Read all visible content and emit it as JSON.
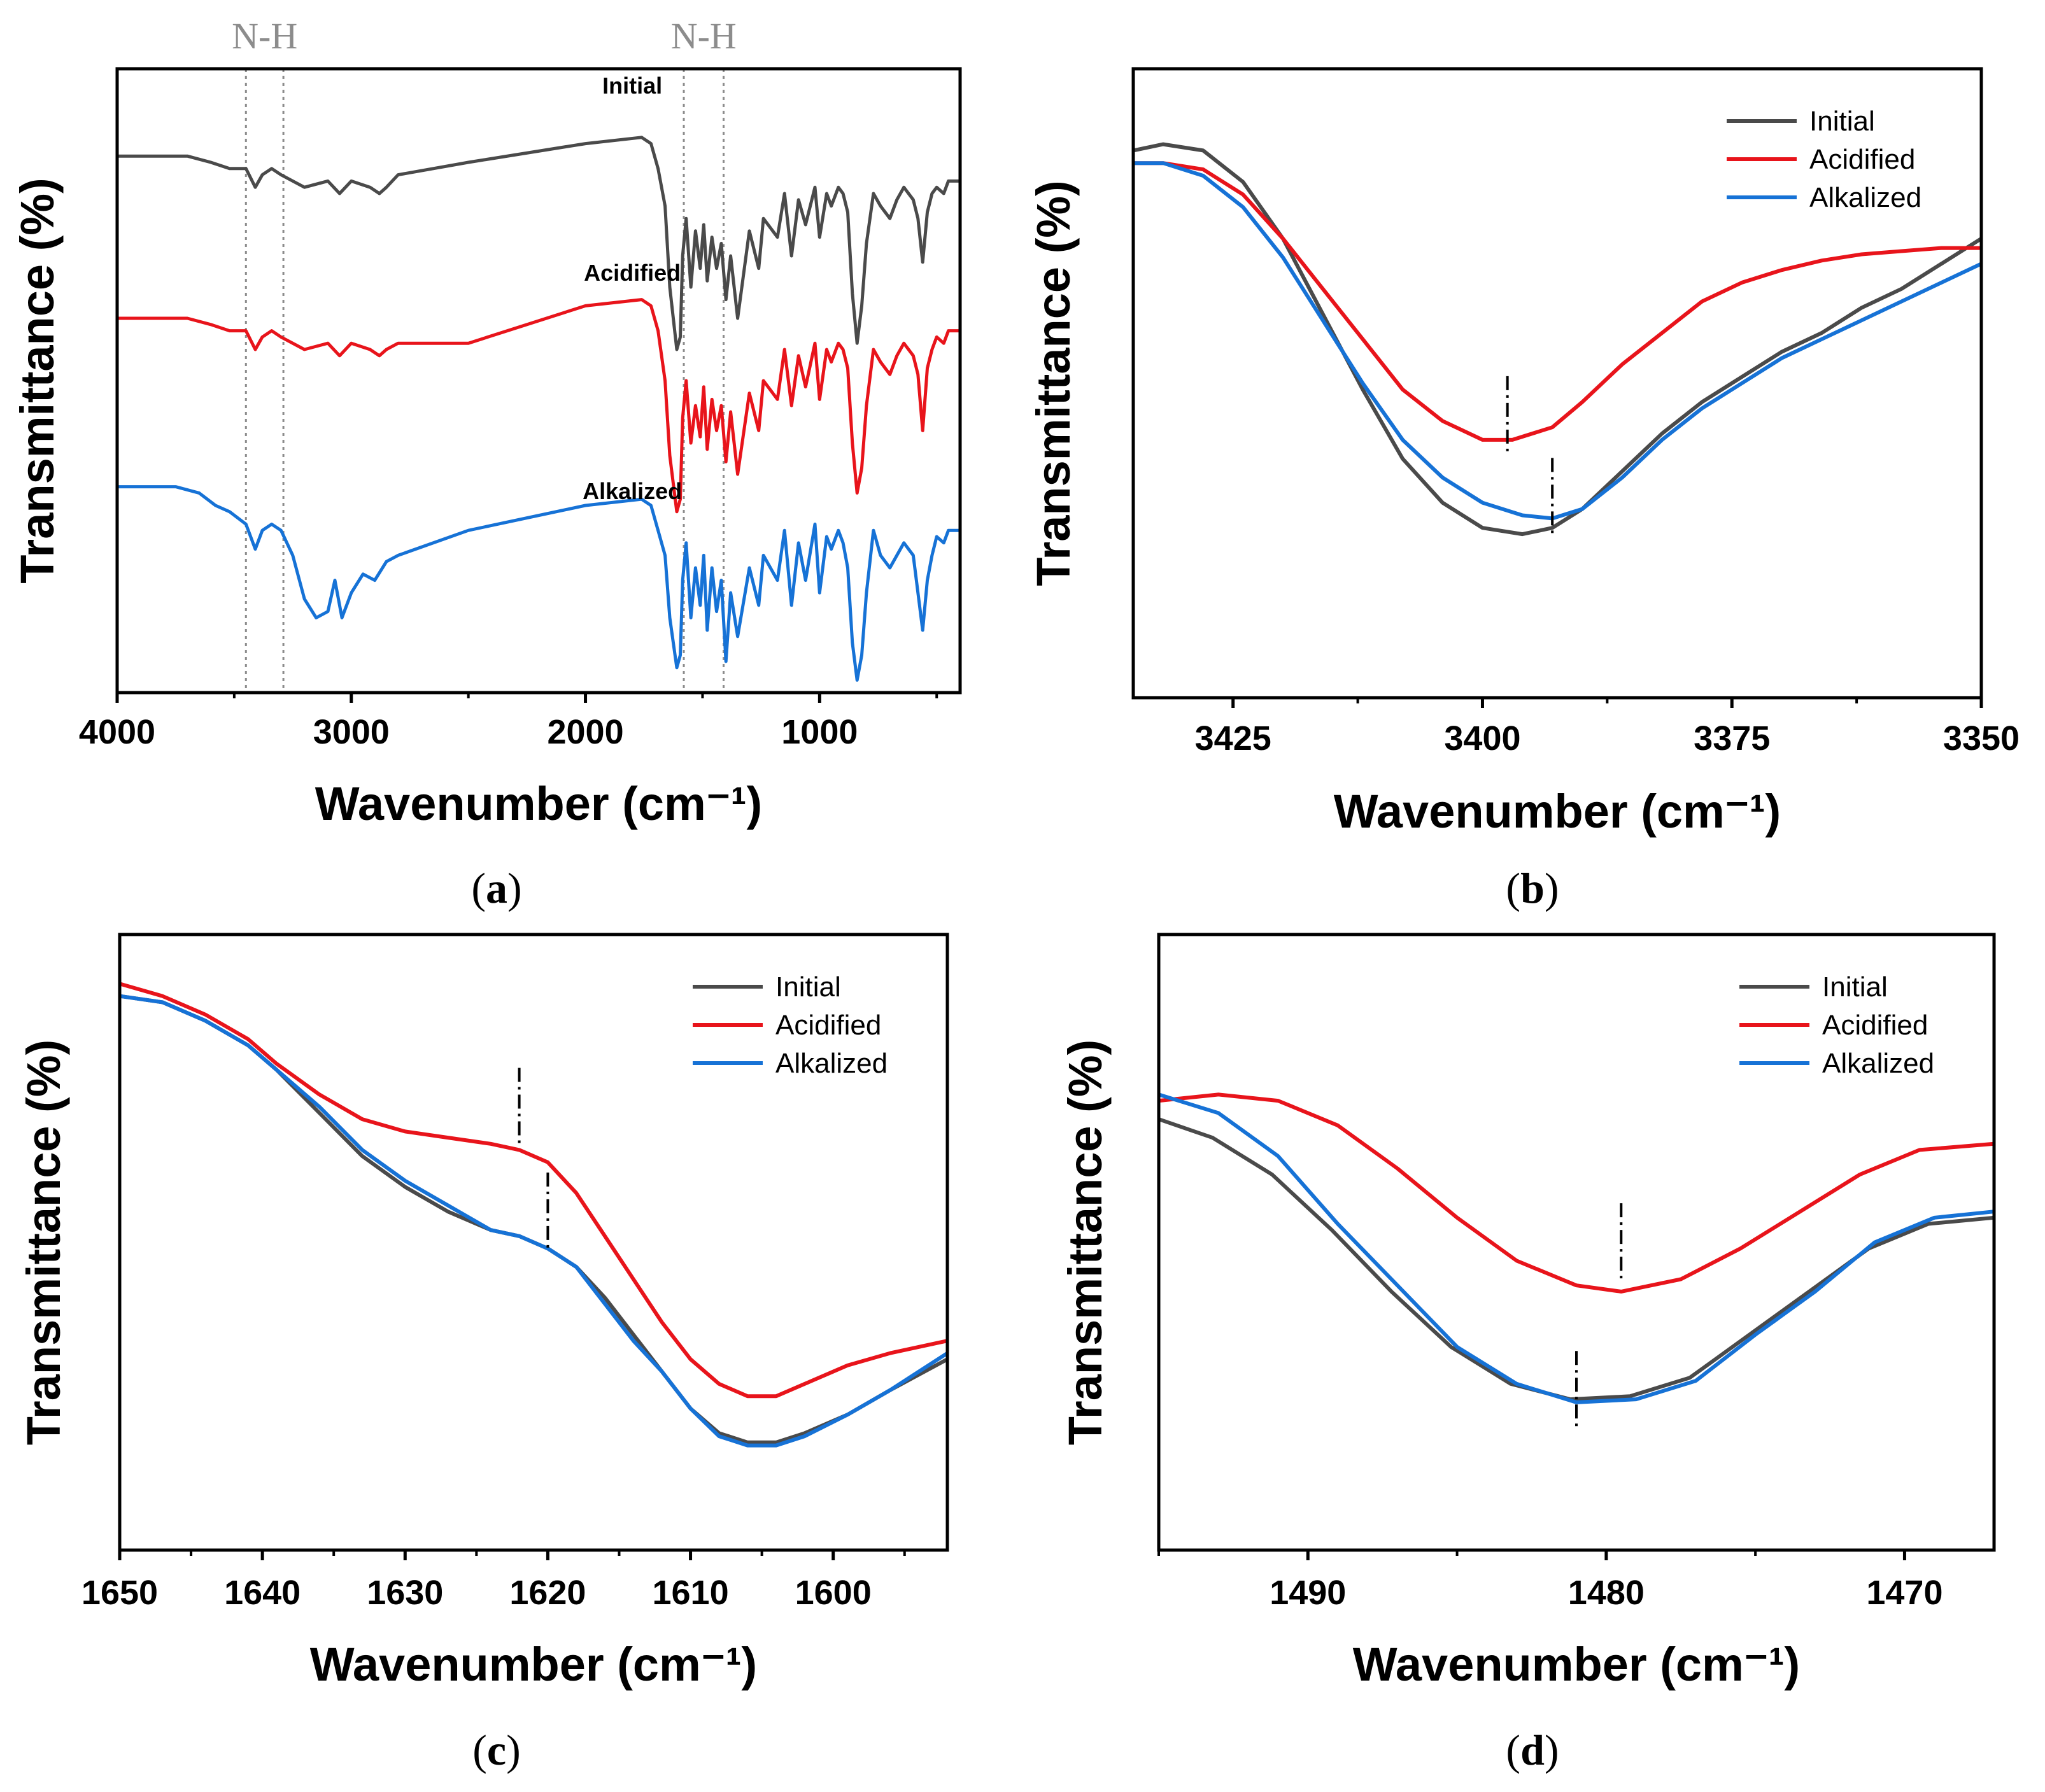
{
  "figure": {
    "colors": {
      "initial": "#4a4a4a",
      "acidified": "#e8141b",
      "alkalized": "#1672d6",
      "guide": "#8c8c8c",
      "marker": "#000000"
    }
  },
  "chart_data": [
    {
      "id": "a",
      "type": "line",
      "caption": "(a)",
      "xlabel": "Wavenumber (cm⁻¹)",
      "ylabel": "Transmittance (%)",
      "xlim": [
        4000,
        400
      ],
      "ylim": [
        0,
        100
      ],
      "xticks": [
        4000,
        3000,
        2000,
        1000
      ],
      "xtick_labels": [
        "4000",
        "3000",
        "2000",
        "1000"
      ],
      "guide_lines": [
        3450,
        3290,
        1580,
        1410
      ],
      "guide_labels": [
        {
          "text": "N-H",
          "x": 3370
        },
        {
          "text": "N-H",
          "x": 1495
        }
      ],
      "trace_labels": [
        {
          "text": "Initial",
          "x": 1800,
          "y": 96
        },
        {
          "text": "Acidified",
          "x": 1800,
          "y": 66
        },
        {
          "text": "Alkalized",
          "x": 1800,
          "y": 31
        }
      ],
      "series": [
        {
          "name": "Initial",
          "color_key": "initial",
          "x": [
            4000,
            3700,
            3600,
            3520,
            3450,
            3410,
            3380,
            3340,
            3300,
            3200,
            3100,
            3050,
            3000,
            2920,
            2880,
            2850,
            2800,
            2500,
            2000,
            1760,
            1720,
            1690,
            1660,
            1640,
            1610,
            1595,
            1585,
            1570,
            1550,
            1530,
            1510,
            1495,
            1480,
            1460,
            1440,
            1420,
            1400,
            1380,
            1350,
            1300,
            1260,
            1240,
            1180,
            1150,
            1120,
            1090,
            1060,
            1020,
            1000,
            970,
            950,
            920,
            900,
            880,
            860,
            840,
            820,
            800,
            770,
            740,
            700,
            670,
            640,
            600,
            580,
            560,
            540,
            520,
            500,
            470,
            450,
            400
          ],
          "y": [
            86,
            86,
            85,
            84,
            84,
            81,
            83,
            84,
            83,
            81,
            82,
            80,
            82,
            81,
            80,
            81,
            83,
            85,
            88,
            89,
            88,
            84,
            78,
            65,
            55,
            57,
            70,
            76,
            65,
            74,
            68,
            75,
            66,
            73,
            68,
            72,
            63,
            70,
            60,
            74,
            68,
            76,
            73,
            80,
            70,
            79,
            75,
            81,
            73,
            80,
            78,
            81,
            80,
            77,
            64,
            56,
            62,
            72,
            80,
            78,
            76,
            79,
            81,
            79,
            76,
            69,
            77,
            80,
            81,
            80,
            82,
            82
          ]
        },
        {
          "name": "Acidified",
          "color_key": "acidified",
          "x": [
            4000,
            3700,
            3600,
            3520,
            3450,
            3410,
            3380,
            3340,
            3300,
            3200,
            3100,
            3050,
            3000,
            2920,
            2880,
            2850,
            2800,
            2500,
            2000,
            1760,
            1720,
            1690,
            1660,
            1640,
            1610,
            1595,
            1585,
            1570,
            1550,
            1530,
            1510,
            1495,
            1480,
            1460,
            1440,
            1420,
            1400,
            1380,
            1350,
            1300,
            1260,
            1240,
            1180,
            1150,
            1120,
            1090,
            1060,
            1020,
            1000,
            970,
            950,
            920,
            900,
            880,
            860,
            840,
            820,
            800,
            770,
            740,
            700,
            670,
            640,
            600,
            580,
            560,
            540,
            520,
            500,
            470,
            450,
            400
          ],
          "y": [
            60,
            60,
            59,
            58,
            58,
            55,
            57,
            58,
            57,
            55,
            56,
            54,
            56,
            55,
            54,
            55,
            56,
            56,
            62,
            63,
            62,
            58,
            50,
            38,
            29,
            31,
            44,
            50,
            40,
            46,
            41,
            49,
            39,
            47,
            42,
            46,
            37,
            45,
            35,
            48,
            42,
            50,
            47,
            55,
            46,
            54,
            49,
            56,
            47,
            55,
            53,
            56,
            55,
            52,
            40,
            32,
            36,
            46,
            55,
            53,
            51,
            54,
            56,
            54,
            51,
            42,
            52,
            55,
            57,
            56,
            58,
            58
          ]
        },
        {
          "name": "Alkalized",
          "color_key": "alkalized",
          "x": [
            4000,
            3750,
            3650,
            3580,
            3520,
            3450,
            3410,
            3380,
            3340,
            3300,
            3250,
            3200,
            3150,
            3100,
            3070,
            3040,
            3000,
            2950,
            2900,
            2850,
            2800,
            2500,
            2000,
            1760,
            1720,
            1690,
            1660,
            1640,
            1610,
            1595,
            1585,
            1570,
            1550,
            1530,
            1510,
            1495,
            1480,
            1460,
            1440,
            1420,
            1400,
            1380,
            1350,
            1300,
            1260,
            1240,
            1180,
            1150,
            1120,
            1090,
            1060,
            1020,
            1000,
            970,
            950,
            920,
            900,
            880,
            860,
            840,
            820,
            800,
            770,
            740,
            700,
            670,
            640,
            600,
            580,
            560,
            540,
            520,
            500,
            470,
            450,
            400
          ],
          "y": [
            33,
            33,
            32,
            30,
            29,
            27,
            23,
            26,
            27,
            26,
            22,
            15,
            12,
            13,
            18,
            12,
            16,
            19,
            18,
            21,
            22,
            26,
            30,
            31,
            30,
            26,
            22,
            12,
            4,
            6,
            18,
            24,
            12,
            20,
            14,
            22,
            10,
            20,
            13,
            18,
            5,
            16,
            9,
            20,
            14,
            22,
            18,
            26,
            14,
            24,
            18,
            27,
            16,
            25,
            23,
            26,
            24,
            20,
            8,
            2,
            6,
            16,
            26,
            22,
            20,
            22,
            24,
            22,
            16,
            10,
            18,
            22,
            25,
            24,
            26,
            26
          ]
        }
      ]
    },
    {
      "id": "b",
      "type": "line",
      "caption": "(b)",
      "xlabel": "Wavenumber (cm⁻¹)",
      "ylabel": "Transmittance (%)",
      "xlim": [
        3435,
        3350
      ],
      "ylim": [
        0,
        100
      ],
      "xticks": [
        3425,
        3400,
        3375,
        3350
      ],
      "xtick_labels": [
        "3425",
        "3400",
        "3375",
        "3350"
      ],
      "legend": [
        "Initial",
        "Acidified",
        "Alkalized"
      ],
      "legend_position": "top-right",
      "markers": [
        {
          "x": 3397.5,
          "y": 41
        },
        {
          "x": 3393,
          "y": 28
        }
      ],
      "series": [
        {
          "name": "Initial",
          "color_key": "initial",
          "x": [
            3435,
            3432,
            3428,
            3424,
            3420,
            3416,
            3412,
            3408,
            3404,
            3400,
            3396,
            3393,
            3390,
            3386,
            3382,
            3378,
            3374,
            3370,
            3366,
            3362,
            3358,
            3354,
            3350
          ],
          "y": [
            87,
            88,
            87,
            82,
            73,
            61,
            49,
            38,
            31,
            27,
            26,
            27,
            30,
            36,
            42,
            47,
            51,
            55,
            58,
            62,
            65,
            69,
            73
          ]
        },
        {
          "name": "Acidified",
          "color_key": "acidified",
          "x": [
            3435,
            3432,
            3428,
            3424,
            3420,
            3416,
            3412,
            3408,
            3404,
            3400,
            3397,
            3393,
            3390,
            3386,
            3382,
            3378,
            3374,
            3370,
            3366,
            3362,
            3358,
            3354,
            3350
          ],
          "y": [
            85,
            85,
            84,
            80,
            73,
            65,
            57,
            49,
            44,
            41,
            41,
            43,
            47,
            53,
            58,
            63,
            66,
            68,
            69.5,
            70.5,
            71,
            71.5,
            71.5
          ]
        },
        {
          "name": "Alkalized",
          "color_key": "alkalized",
          "x": [
            3435,
            3432,
            3428,
            3424,
            3420,
            3416,
            3412,
            3408,
            3404,
            3400,
            3396,
            3393,
            3390,
            3386,
            3382,
            3378,
            3374,
            3370,
            3366,
            3362,
            3358,
            3354,
            3350
          ],
          "y": [
            85,
            85,
            83,
            78,
            70,
            60,
            50,
            41,
            35,
            31,
            29,
            28.5,
            30,
            35,
            41,
            46,
            50,
            54,
            57,
            60,
            63,
            66,
            69
          ]
        }
      ]
    },
    {
      "id": "c",
      "type": "line",
      "caption": "(c)",
      "xlabel": "Wavenumber (cm⁻¹)",
      "ylabel": "Transmittance (%)",
      "xlim": [
        1650,
        1592
      ],
      "ylim": [
        0,
        100
      ],
      "xticks": [
        1650,
        1640,
        1630,
        1620,
        1610,
        1600
      ],
      "xtick_labels": [
        "1650",
        "1640",
        "1630",
        "1620",
        "1610",
        "1600"
      ],
      "legend": [
        "Initial",
        "Acidified",
        "Alkalized"
      ],
      "legend_position": "top-right",
      "markers": [
        {
          "x": 1622,
          "y": 68
        },
        {
          "x": 1620,
          "y": 51
        }
      ],
      "series": [
        {
          "name": "Initial",
          "color_key": "initial",
          "x": [
            1650,
            1647,
            1644,
            1641,
            1639,
            1636,
            1633,
            1630,
            1627,
            1624,
            1622,
            1620,
            1618,
            1616,
            1614,
            1612,
            1610,
            1608,
            1606,
            1604,
            1602,
            1599,
            1596,
            1592
          ],
          "y": [
            90,
            89,
            86,
            82,
            78,
            71,
            64,
            59,
            55,
            52,
            51,
            49,
            46,
            41,
            35,
            29,
            23,
            19,
            17.5,
            17.5,
            19,
            22,
            26,
            31
          ]
        },
        {
          "name": "Acidified",
          "color_key": "acidified",
          "x": [
            1650,
            1647,
            1644,
            1641,
            1639,
            1636,
            1633,
            1630,
            1627,
            1624,
            1622,
            1620,
            1618,
            1616,
            1614,
            1612,
            1610,
            1608,
            1606,
            1604,
            1602,
            1599,
            1596,
            1592
          ],
          "y": [
            92,
            90,
            87,
            83,
            79,
            74,
            70,
            68,
            67,
            66,
            65,
            63,
            58,
            51,
            44,
            37,
            31,
            27,
            25,
            25,
            27,
            30,
            32,
            34
          ]
        },
        {
          "name": "Alkalized",
          "color_key": "alkalized",
          "x": [
            1650,
            1647,
            1644,
            1641,
            1639,
            1636,
            1633,
            1630,
            1627,
            1624,
            1622,
            1620,
            1618,
            1616,
            1614,
            1612,
            1610,
            1608,
            1606,
            1604,
            1602,
            1599,
            1596,
            1592
          ],
          "y": [
            90,
            89,
            86,
            82,
            78,
            72,
            65,
            60,
            56,
            52,
            51,
            49,
            46,
            40,
            34,
            29,
            23,
            18.5,
            17,
            17,
            18.5,
            22,
            26,
            32
          ]
        }
      ]
    },
    {
      "id": "d",
      "type": "line",
      "caption": "(d)",
      "xlabel": "Wavenumber (cm⁻¹)",
      "ylabel": "Transmittance (%)",
      "xlim": [
        1495,
        1467
      ],
      "ylim": [
        0,
        100
      ],
      "xticks": [
        1490,
        1480,
        1470
      ],
      "xtick_labels": [
        "1490",
        "1480",
        "1470"
      ],
      "legend": [
        "Initial",
        "Acidified",
        "Alkalized"
      ],
      "legend_position": "top-right",
      "markers": [
        {
          "x": 1479.5,
          "y": 46
        },
        {
          "x": 1481,
          "y": 22
        }
      ],
      "series": [
        {
          "name": "Initial",
          "color_key": "initial",
          "x": [
            1495,
            1493.2,
            1491.2,
            1489.2,
            1487.2,
            1485.2,
            1483.2,
            1481.2,
            1479.2,
            1477.2,
            1475.2,
            1473.2,
            1471.2,
            1469.2,
            1467
          ],
          "y": [
            70,
            67,
            61,
            52,
            42,
            33,
            27,
            24.5,
            25,
            28,
            35,
            42,
            49,
            53,
            54
          ]
        },
        {
          "name": "Acidified",
          "color_key": "acidified",
          "x": [
            1495,
            1493,
            1491,
            1489,
            1487,
            1485,
            1483,
            1481,
            1479.5,
            1477.5,
            1475.5,
            1473.5,
            1471.5,
            1469.5,
            1467
          ],
          "y": [
            73,
            74,
            73,
            69,
            62,
            54,
            47,
            43,
            42,
            44,
            49,
            55,
            61,
            65,
            66
          ]
        },
        {
          "name": "Alkalized",
          "color_key": "alkalized",
          "x": [
            1495,
            1493,
            1491,
            1489,
            1487,
            1485,
            1483,
            1481,
            1479,
            1477,
            1475,
            1473,
            1471,
            1469,
            1467
          ],
          "y": [
            74,
            71,
            64,
            53,
            43,
            33,
            27,
            24,
            24.5,
            27.5,
            35,
            42,
            50,
            54,
            55
          ]
        }
      ]
    }
  ]
}
